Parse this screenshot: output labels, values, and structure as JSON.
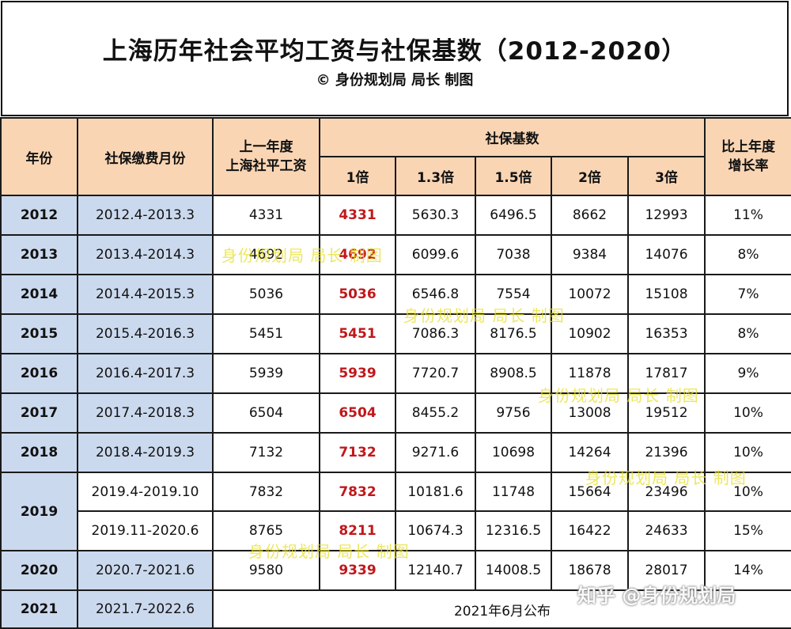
{
  "title": "上海历年社会平均工资与社保基数（2012-2020）",
  "subtitle": "© 身份规划局 局长 制图",
  "headers": {
    "year": "年份",
    "months": "社保缴费月份",
    "prev_wage_line1": "上一年度",
    "prev_wage_line2": "上海社平工资",
    "base_group": "社保基数",
    "multipliers": [
      "1倍",
      "1.3倍",
      "1.5倍",
      "2倍",
      "3倍"
    ],
    "growth_line1": "比上年度",
    "growth_line2": "增长率"
  },
  "rows": [
    {
      "year": "2012",
      "period": "2012.4-2013.3",
      "wage": "4331",
      "b1": "4331",
      "b13": "5630.3",
      "b15": "6496.5",
      "b2": "8662",
      "b3": "12993",
      "growth": "11%"
    },
    {
      "year": "2013",
      "period": "2013.4-2014.3",
      "wage": "4692",
      "b1": "4692",
      "b13": "6099.6",
      "b15": "7038",
      "b2": "9384",
      "b3": "14076",
      "growth": "8%"
    },
    {
      "year": "2014",
      "period": "2014.4-2015.3",
      "wage": "5036",
      "b1": "5036",
      "b13": "6546.8",
      "b15": "7554",
      "b2": "10072",
      "b3": "15108",
      "growth": "7%"
    },
    {
      "year": "2015",
      "period": "2015.4-2016.3",
      "wage": "5451",
      "b1": "5451",
      "b13": "7086.3",
      "b15": "8176.5",
      "b2": "10902",
      "b3": "16353",
      "growth": "8%"
    },
    {
      "year": "2016",
      "period": "2016.4-2017.3",
      "wage": "5939",
      "b1": "5939",
      "b13": "7720.7",
      "b15": "8908.5",
      "b2": "11878",
      "b3": "17817",
      "growth": "9%"
    },
    {
      "year": "2017",
      "period": "2017.4-2018.3",
      "wage": "6504",
      "b1": "6504",
      "b13": "8455.2",
      "b15": "9756",
      "b2": "13008",
      "b3": "19512",
      "growth": "10%"
    },
    {
      "year": "2018",
      "period": "2018.4-2019.3",
      "wage": "7132",
      "b1": "7132",
      "b13": "9271.6",
      "b15": "10698",
      "b2": "14264",
      "b3": "21396",
      "growth": "10%"
    },
    {
      "year": "2019",
      "period": "2019.4-2019.10",
      "wage": "7832",
      "b1": "7832",
      "b13": "10181.6",
      "b15": "11748",
      "b2": "15664",
      "b3": "23496",
      "growth": "10%"
    },
    {
      "year": "",
      "period": "2019.11-2020.6",
      "wage": "8765",
      "b1": "8211",
      "b13": "10674.3",
      "b15": "12316.5",
      "b2": "16422",
      "b3": "24633",
      "growth": "15%"
    },
    {
      "year": "2020",
      "period": "2020.7-2021.6",
      "wage": "9580",
      "b1": "9339",
      "b13": "12140.7",
      "b15": "14008.5",
      "b2": "18678",
      "b3": "28017",
      "growth": "14%"
    },
    {
      "year": "2021",
      "period": "2021.7-2022.6",
      "note": "2021年6月公布"
    }
  ],
  "watermark": "身份规划局 局长 制图",
  "source_mark": "知乎 @身份规划局",
  "colors": {
    "header_bg": "#f9d5b4",
    "year_col_bg": "#cbd9ee",
    "highlight_red": "#c0181c",
    "watermark_yellow": "#e6df2a"
  }
}
